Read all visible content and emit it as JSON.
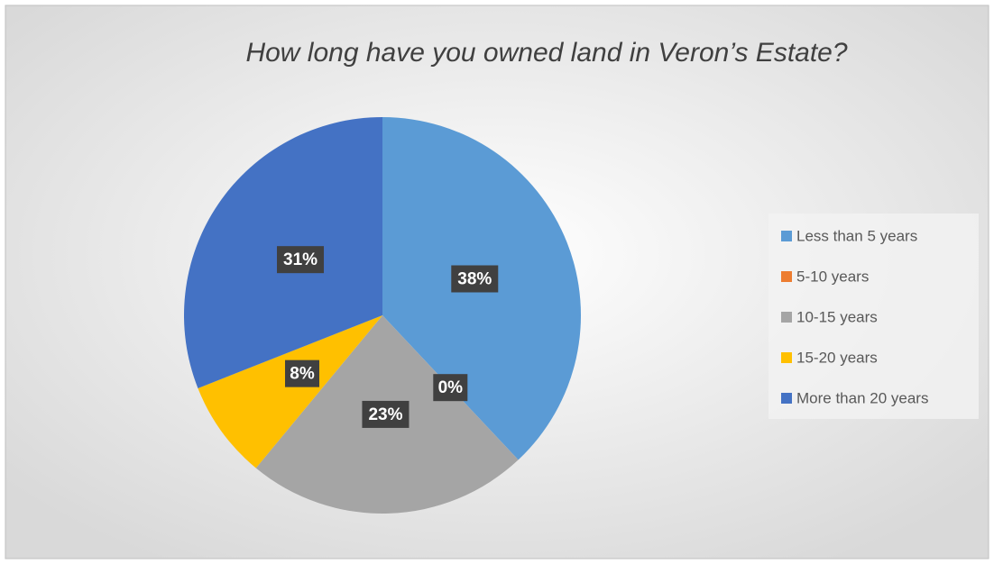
{
  "chart_data": {
    "type": "pie",
    "title": "How long have you owned land in Veron’s Estate?",
    "categories": [
      "Less than 5 years",
      "5-10 years",
      "10-15 years",
      "15-20 years",
      "More than 20 years"
    ],
    "values": [
      38,
      0,
      23,
      8,
      31
    ],
    "value_labels": [
      "38%",
      "0%",
      "23%",
      "8%",
      "31%"
    ],
    "colors": [
      "#5b9bd5",
      "#ed7d31",
      "#a5a5a5",
      "#ffc000",
      "#4472c4"
    ],
    "legend": "right"
  }
}
